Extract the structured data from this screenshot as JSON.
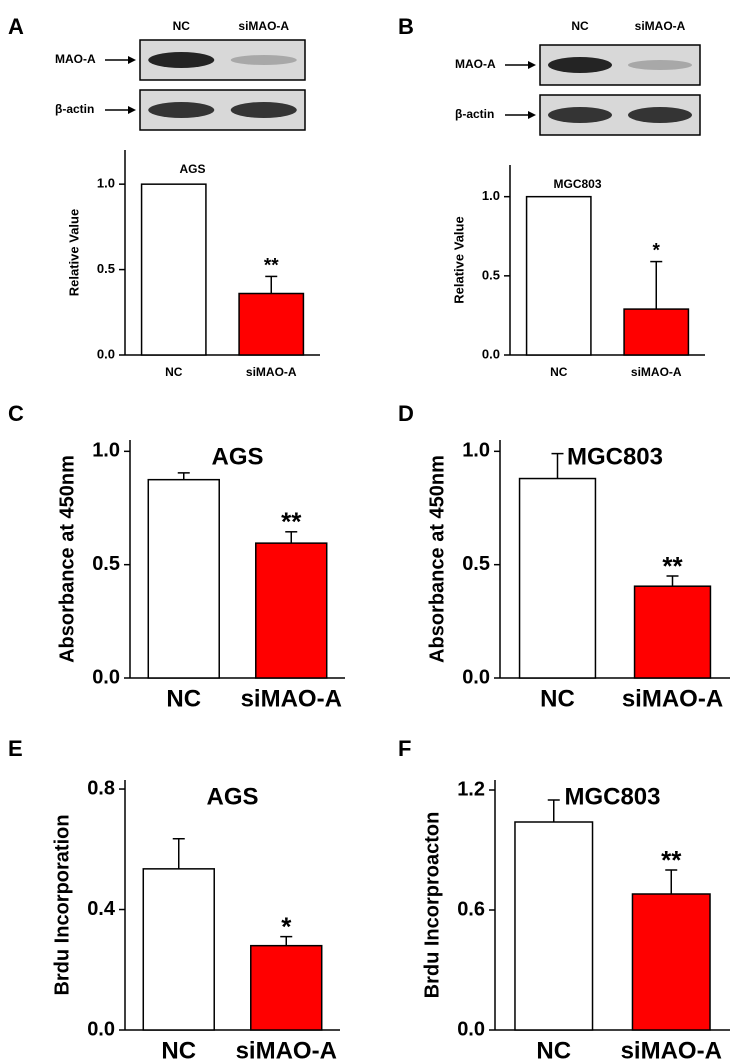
{
  "chart_data": [
    {
      "type": "bar",
      "panel": "A",
      "title": "AGS",
      "y_label": "Relative Value",
      "blot": {
        "lanes": [
          "NC",
          "siMAO-A"
        ],
        "rows": [
          "MAO-A",
          "β-actin"
        ]
      },
      "categories": [
        "NC",
        "siMAO-A"
      ],
      "values": [
        1.0,
        0.36
      ],
      "errors": [
        null,
        0.1
      ],
      "significance": [
        null,
        "**"
      ],
      "colors": [
        "#ffffff",
        "#ff0000"
      ],
      "ylim": [
        0,
        1.2
      ],
      "yticks": [
        {
          "value": 0,
          "label": "0.0"
        },
        0.5,
        {
          "value": 1,
          "label": "1.0"
        }
      ]
    },
    {
      "type": "bar",
      "panel": "B",
      "title": "MGC803",
      "y_label": "Relative Value",
      "blot": {
        "lanes": [
          "NC",
          "siMAO-A"
        ],
        "rows": [
          "MAO-A",
          "β-actin"
        ]
      },
      "categories": [
        "NC",
        "siMAO-A"
      ],
      "values": [
        1.0,
        0.29
      ],
      "errors": [
        null,
        0.3
      ],
      "significance": [
        null,
        "*"
      ],
      "colors": [
        "#ffffff",
        "#ff0000"
      ],
      "ylim": [
        0,
        1.2
      ],
      "yticks": [
        {
          "value": 0,
          "label": "0.0"
        },
        0.5,
        {
          "value": 1,
          "label": "1.0"
        }
      ]
    },
    {
      "type": "bar",
      "panel": "C",
      "title": "AGS",
      "y_label": "Absorbance at 450nm",
      "categories": [
        "NC",
        "siMAO-A"
      ],
      "values": [
        0.875,
        0.595
      ],
      "errors": [
        0.03,
        0.05
      ],
      "significance": [
        null,
        "**"
      ],
      "colors": [
        "#ffffff",
        "#ff0000"
      ],
      "ylim": [
        0,
        1.05
      ],
      "yticks": [
        {
          "value": 0,
          "label": "0.0"
        },
        0.5,
        {
          "value": 1,
          "label": "1.0"
        }
      ]
    },
    {
      "type": "bar",
      "panel": "D",
      "title": "MGC803",
      "y_label": "Absorbance at 450nm",
      "categories": [
        "NC",
        "siMAO-A"
      ],
      "values": [
        0.88,
        0.405
      ],
      "errors": [
        0.11,
        0.045
      ],
      "significance": [
        null,
        "**"
      ],
      "colors": [
        "#ffffff",
        "#ff0000"
      ],
      "ylim": [
        0,
        1.05
      ],
      "yticks": [
        {
          "value": 0,
          "label": "0.0"
        },
        0.5,
        {
          "value": 1,
          "label": "1.0"
        }
      ]
    },
    {
      "type": "bar",
      "panel": "E",
      "title": "AGS",
      "y_label": "Brdu Incorporation",
      "categories": [
        "NC",
        "siMAO-A"
      ],
      "values": [
        0.535,
        0.28
      ],
      "errors": [
        0.1,
        0.03
      ],
      "significance": [
        null,
        "*"
      ],
      "colors": [
        "#ffffff",
        "#ff0000"
      ],
      "ylim": [
        0,
        0.83
      ],
      "yticks": [
        {
          "value": 0,
          "label": "0.0"
        },
        0.4,
        0.8
      ]
    },
    {
      "type": "bar",
      "panel": "F",
      "title": "MGC803",
      "y_label": "Brdu Incorproacton",
      "categories": [
        "NC",
        "siMAO-A"
      ],
      "values": [
        1.04,
        0.68
      ],
      "errors": [
        0.11,
        0.12
      ],
      "significance": [
        null,
        "**"
      ],
      "colors": [
        "#ffffff",
        "#ff0000"
      ],
      "ylim": [
        0,
        1.25
      ],
      "yticks": [
        {
          "value": 0,
          "label": "0.0"
        },
        0.6,
        1.2
      ]
    }
  ]
}
